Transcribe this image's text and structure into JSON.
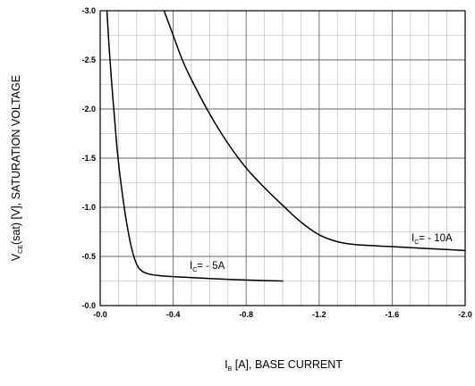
{
  "chart_data": {
    "type": "line",
    "xlabel": {
      "main": "I",
      "sub": "B",
      "rest": " [A], BASE CURRENT"
    },
    "ylabel": {
      "main": "V",
      "sub": "CE",
      "rest": "(sat) [V], SATURATION VOLTAGE"
    },
    "xlim": [
      0.0,
      -2.0
    ],
    "ylim": [
      0.0,
      -3.0
    ],
    "x_ticks": [
      "-0.0",
      "-0.4",
      "-0.8",
      "-1.2",
      "-1.6",
      "-2.0"
    ],
    "y_ticks": [
      "-0.0",
      "-0.5",
      "-1.0",
      "-1.5",
      "-2.0",
      "-2.5",
      "-3.0"
    ],
    "x_minor_step": 0.1,
    "y_minor_step": 0.25,
    "grid": true,
    "series": [
      {
        "name": "I_C = - 5A",
        "label": {
          "main": "I",
          "sub": "C",
          "rest": "= - 5A"
        },
        "x": [
          -0.037,
          -0.05,
          -0.07,
          -0.09,
          -0.11,
          -0.14,
          -0.17,
          -0.2,
          -0.23,
          -0.27,
          -0.35,
          -0.45,
          -0.6,
          -0.8,
          -1.0
        ],
        "y": [
          -3.0,
          -2.6,
          -2.1,
          -1.65,
          -1.3,
          -0.9,
          -0.6,
          -0.42,
          -0.35,
          -0.32,
          -0.3,
          -0.29,
          -0.275,
          -0.26,
          -0.25
        ]
      },
      {
        "name": "I_C = - 10A",
        "label": {
          "main": "I",
          "sub": "C",
          "rest": "= - 10A"
        },
        "x": [
          -0.35,
          -0.4,
          -0.45,
          -0.5,
          -0.6,
          -0.7,
          -0.8,
          -0.9,
          -1.0,
          -1.1,
          -1.2,
          -1.3,
          -1.4,
          -1.6,
          -1.8,
          -2.0
        ],
        "y": [
          -3.0,
          -2.75,
          -2.5,
          -2.3,
          -1.95,
          -1.65,
          -1.4,
          -1.2,
          -1.02,
          -0.85,
          -0.72,
          -0.65,
          -0.62,
          -0.6,
          -0.58,
          -0.56
        ]
      }
    ]
  }
}
